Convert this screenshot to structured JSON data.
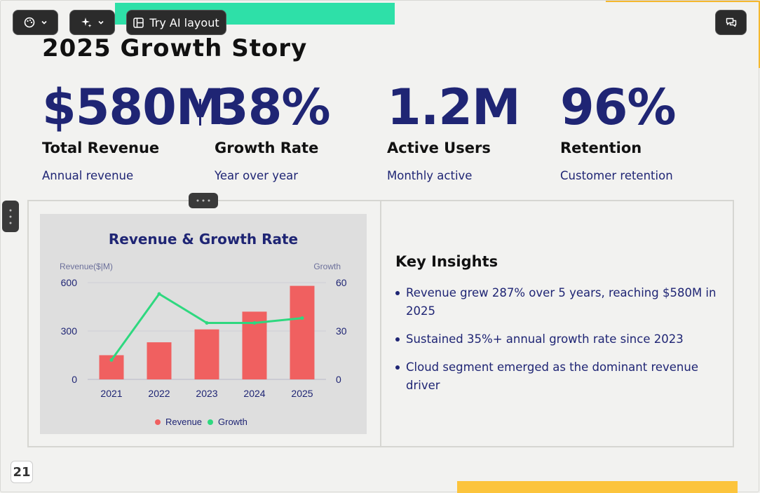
{
  "toolbar": {
    "ai_layout_label": "Try AI layout",
    "icons": [
      "palette-icon",
      "chevron-down-icon",
      "sparkles-icon",
      "layout-icon",
      "chat-icon"
    ]
  },
  "slide": {
    "title": "2025 Growth Story",
    "stats": [
      {
        "value": "$580M",
        "label": "Total Revenue",
        "desc": "Annual revenue"
      },
      {
        "value": "38%",
        "label": "Growth Rate",
        "desc": "Year over year"
      },
      {
        "value": "1.2M",
        "label": "Active Users",
        "desc": "Monthly active"
      },
      {
        "value": "96%",
        "label": "Retention",
        "desc": "Customer retention"
      }
    ],
    "insights": {
      "title": "Key Insights",
      "items": [
        "Revenue grew 287% over 5 years, reaching $580M in 2025",
        "Sustained 35%+ annual growth rate since 2023",
        "Cloud segment emerged as the dominant revenue driver"
      ]
    },
    "page_number": "21"
  },
  "colors": {
    "accent_navy": "#1f2574",
    "bar_red": "#f06060",
    "line_green": "#2ed87f",
    "accent_green": "#2ee0a8",
    "accent_yellow": "#fcc43c"
  },
  "chart_data": {
    "type": "bar",
    "title": "Revenue & Growth Rate",
    "categories": [
      "2021",
      "2022",
      "2023",
      "2024",
      "2025"
    ],
    "series": [
      {
        "name": "Revenue",
        "type": "bar",
        "axis": "left",
        "values": [
          150,
          230,
          310,
          420,
          580
        ]
      },
      {
        "name": "Growth",
        "type": "line",
        "axis": "right",
        "values": [
          12,
          53,
          35,
          35,
          38
        ]
      }
    ],
    "ylabel": "Revenue($|M)",
    "y2label": "Growth",
    "ylim": [
      0,
      600
    ],
    "y2lim": [
      0,
      60
    ],
    "yticks": [
      "0",
      "300",
      "600"
    ],
    "y2ticks": [
      "0",
      "30",
      "60"
    ],
    "legend": "bottom",
    "grid": true
  }
}
